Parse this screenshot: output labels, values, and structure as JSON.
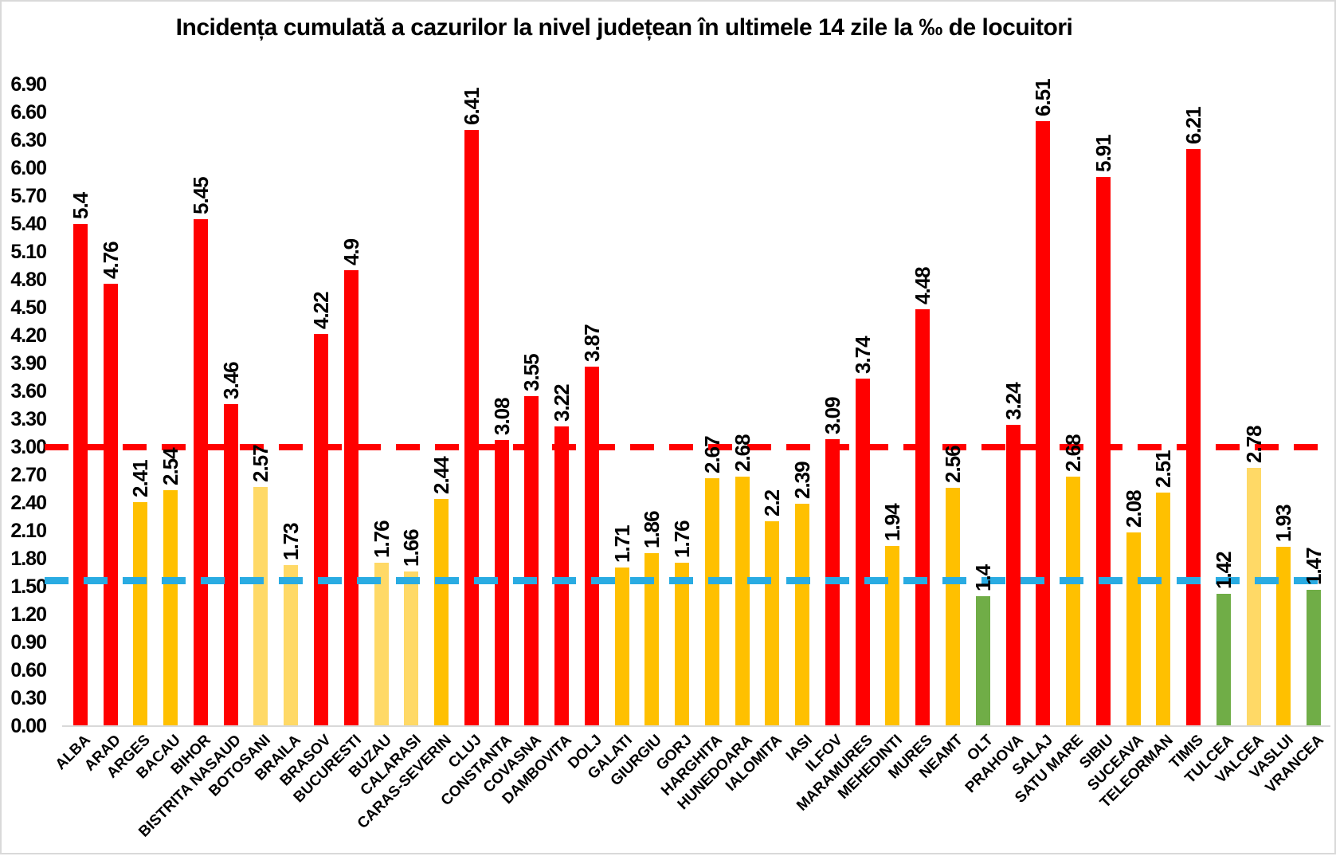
{
  "chart_data": {
    "type": "bar",
    "title": "Incidența cumulată a cazurilor la nivel județean în ultimele 14 zile la ‰ de locuitori",
    "xlabel": "",
    "ylabel": "",
    "ylim": [
      0,
      6.9
    ],
    "y_tick_step": 0.3,
    "grid": false,
    "legend": "none",
    "y_ticks": [
      "0.00",
      "0.30",
      "0.60",
      "0.90",
      "1.20",
      "1.50",
      "1.80",
      "2.10",
      "2.40",
      "2.70",
      "3.00",
      "3.30",
      "3.60",
      "3.90",
      "4.20",
      "4.50",
      "4.80",
      "5.10",
      "5.40",
      "5.70",
      "6.00",
      "6.30",
      "6.60",
      "6.90"
    ],
    "thresholds": [
      {
        "name": "red-threshold-line",
        "value": 3.0,
        "style": "dashed",
        "color_key": "threshold_red"
      },
      {
        "name": "blue-threshold-line",
        "value": 1.5,
        "style": "dashed",
        "color_key": "threshold_blue"
      }
    ],
    "colors": {
      "red": "#FF0000",
      "gold": "#FFC000",
      "light_yellow": "#FFD966",
      "green": "#70AD47",
      "threshold_red": "#FF0000",
      "threshold_blue": "#29ABE2",
      "axis_gray": "#D9D9D9"
    },
    "series": [
      {
        "county": "ALBA",
        "value": 5.4,
        "label": "5.4",
        "color": "red"
      },
      {
        "county": "ARAD",
        "value": 4.76,
        "label": "4.76",
        "color": "red"
      },
      {
        "county": "ARGES",
        "value": 2.41,
        "label": "2.41",
        "color": "gold"
      },
      {
        "county": "BACAU",
        "value": 2.54,
        "label": "2.54",
        "color": "gold"
      },
      {
        "county": "BIHOR",
        "value": 5.45,
        "label": "5.45",
        "color": "red"
      },
      {
        "county": "BISTRITA NASAUD",
        "value": 3.46,
        "label": "3.46",
        "color": "red"
      },
      {
        "county": "BOTOSANI",
        "value": 2.57,
        "label": "2.57",
        "color": "light_yellow"
      },
      {
        "county": "BRAILA",
        "value": 1.73,
        "label": "1.73",
        "color": "light_yellow"
      },
      {
        "county": "BRASOV",
        "value": 4.22,
        "label": "4.22",
        "color": "red"
      },
      {
        "county": "BUCURESTI",
        "value": 4.9,
        "label": "4.9",
        "color": "red"
      },
      {
        "county": "BUZAU",
        "value": 1.76,
        "label": "1.76",
        "color": "light_yellow"
      },
      {
        "county": "CALARASI",
        "value": 1.66,
        "label": "1.66",
        "color": "light_yellow"
      },
      {
        "county": "CARAS-SEVERIN",
        "value": 2.44,
        "label": "2.44",
        "color": "gold"
      },
      {
        "county": "CLUJ",
        "value": 6.41,
        "label": "6.41",
        "color": "red"
      },
      {
        "county": "CONSTANTA",
        "value": 3.08,
        "label": "3.08",
        "color": "red"
      },
      {
        "county": "COVASNA",
        "value": 3.55,
        "label": "3.55",
        "color": "red"
      },
      {
        "county": "DAMBOVITA",
        "value": 3.22,
        "label": "3.22",
        "color": "red"
      },
      {
        "county": "DOLJ",
        "value": 3.87,
        "label": "3.87",
        "color": "red"
      },
      {
        "county": "GALATI",
        "value": 1.71,
        "label": "1.71",
        "color": "gold"
      },
      {
        "county": "GIURGIU",
        "value": 1.86,
        "label": "1.86",
        "color": "gold"
      },
      {
        "county": "GORJ",
        "value": 1.76,
        "label": "1.76",
        "color": "gold"
      },
      {
        "county": "HARGHITA",
        "value": 2.67,
        "label": "2.67",
        "color": "gold"
      },
      {
        "county": "HUNEDOARA",
        "value": 2.68,
        "label": "2.68",
        "color": "gold"
      },
      {
        "county": "IALOMITA",
        "value": 2.2,
        "label": "2.2",
        "color": "gold"
      },
      {
        "county": "IASI",
        "value": 2.39,
        "label": "2.39",
        "color": "gold"
      },
      {
        "county": "ILFOV",
        "value": 3.09,
        "label": "3.09",
        "color": "red"
      },
      {
        "county": "MARAMURES",
        "value": 3.74,
        "label": "3.74",
        "color": "red"
      },
      {
        "county": "MEHEDINTI",
        "value": 1.94,
        "label": "1.94",
        "color": "gold"
      },
      {
        "county": "MURES",
        "value": 4.48,
        "label": "4.48",
        "color": "red"
      },
      {
        "county": "NEAMT",
        "value": 2.56,
        "label": "2.56",
        "color": "gold"
      },
      {
        "county": "OLT",
        "value": 1.4,
        "label": "1.4",
        "color": "green"
      },
      {
        "county": "PRAHOVA",
        "value": 3.24,
        "label": "3.24",
        "color": "red"
      },
      {
        "county": "SALAJ",
        "value": 6.51,
        "label": "6.51",
        "color": "red"
      },
      {
        "county": "SATU MARE",
        "value": 2.68,
        "label": "2.68",
        "color": "gold"
      },
      {
        "county": "SIBIU",
        "value": 5.91,
        "label": "5.91",
        "color": "red"
      },
      {
        "county": "SUCEAVA",
        "value": 2.08,
        "label": "2.08",
        "color": "gold"
      },
      {
        "county": "TELEORMAN",
        "value": 2.51,
        "label": "2.51",
        "color": "gold"
      },
      {
        "county": "TIMIS",
        "value": 6.21,
        "label": "6.21",
        "color": "red"
      },
      {
        "county": "TULCEA",
        "value": 1.42,
        "label": "1.42",
        "color": "green"
      },
      {
        "county": "VALCEA",
        "value": 2.78,
        "label": "2.78",
        "color": "light_yellow"
      },
      {
        "county": "VASLUI",
        "value": 1.93,
        "label": "1.93",
        "color": "gold"
      },
      {
        "county": "VRANCEA",
        "value": 1.47,
        "label": "1.47",
        "color": "green"
      }
    ]
  }
}
